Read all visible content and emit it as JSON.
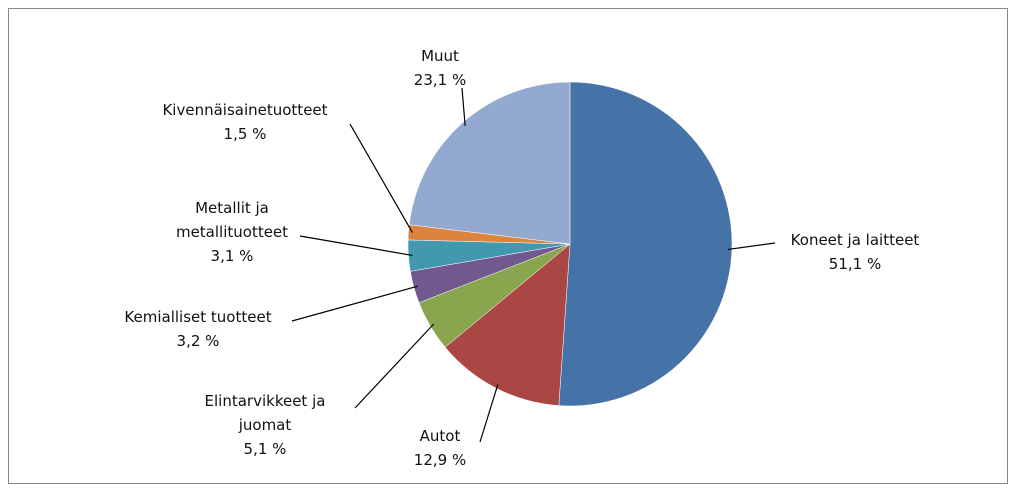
{
  "chart_data": {
    "type": "pie",
    "categories": [
      "Koneet ja laitteet",
      "Autot",
      "Elintarvikkeet ja juomat",
      "Kemialliset tuotteet",
      "Metallit ja metallituotteet",
      "Kivennäisainetuotteet",
      "Muut"
    ],
    "values": [
      51.1,
      12.9,
      5.1,
      3.2,
      3.1,
      1.5,
      23.1
    ],
    "value_labels": [
      "51,1 %",
      "12,9 %",
      "5,1 %",
      "3,2 %",
      "3,1 %",
      "1,5 %",
      "23,1 %"
    ],
    "colors": [
      "#4572a7",
      "#aa4643",
      "#89a54e",
      "#71588f",
      "#4198af",
      "#db843d",
      "#93a9cf"
    ]
  }
}
